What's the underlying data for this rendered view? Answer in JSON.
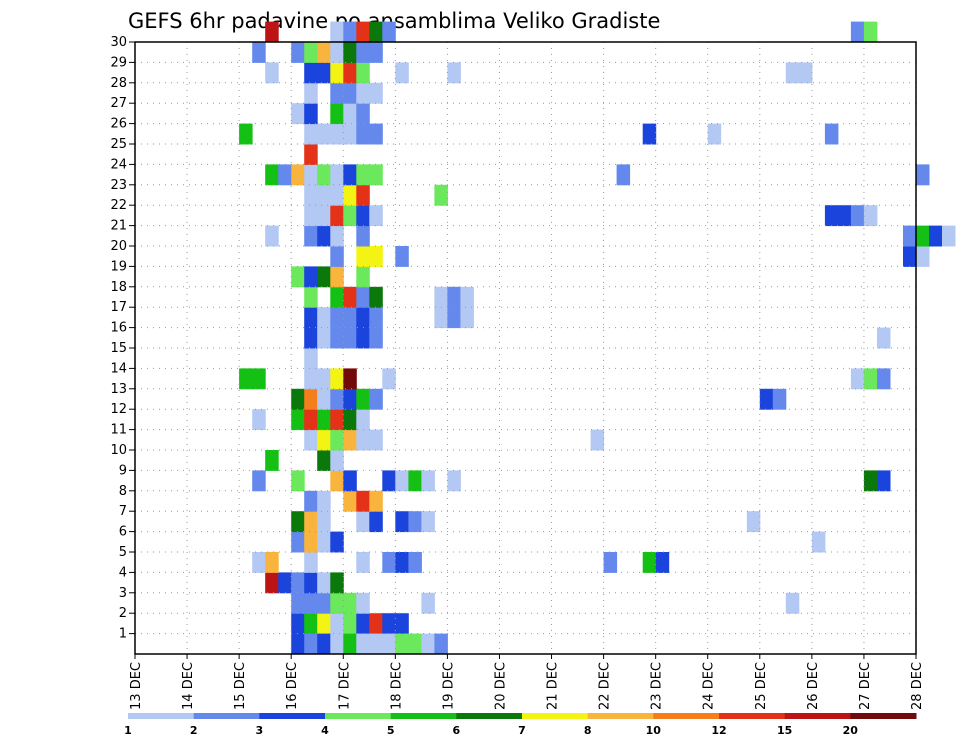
{
  "chart_data": {
    "type": "heatmap",
    "title": "GEFS 6hr padavine po ansamblima Veliko Gradiste",
    "x_ticks": [
      "13 DEC",
      "14 DEC",
      "15 DEC",
      "16 DEC",
      "17 DEC",
      "18 DEC",
      "19 DEC",
      "20 DEC",
      "21 DEC",
      "22 DEC",
      "23 DEC",
      "24 DEC",
      "25 DEC",
      "26 DEC",
      "27 DEC",
      "28 DEC"
    ],
    "y_ticks": [
      "1",
      "2",
      "3",
      "4",
      "5",
      "6",
      "7",
      "8",
      "9",
      "10",
      "11",
      "12",
      "13",
      "14",
      "15",
      "16",
      "17",
      "18",
      "19",
      "20",
      "21",
      "22",
      "23",
      "24",
      "25",
      "26",
      "27",
      "28",
      "29",
      "30"
    ],
    "xlim": [
      "13 DEC",
      "28 DEC"
    ],
    "ylim": [
      0,
      30
    ],
    "grid": true,
    "step_hours": 6,
    "colorbar": {
      "placement": "bottom",
      "labels": [
        "1",
        "2",
        "3",
        "4",
        "5",
        "6",
        "7",
        "8",
        "10",
        "12",
        "15",
        "20"
      ],
      "bins": [
        {
          "from": 1,
          "to": 2,
          "color": "#b4c8f4"
        },
        {
          "from": 2,
          "to": 3,
          "color": "#6488ec"
        },
        {
          "from": 3,
          "to": 4,
          "color": "#1a44dc"
        },
        {
          "from": 4,
          "to": 5,
          "color": "#6ce85c"
        },
        {
          "from": 5,
          "to": 6,
          "color": "#14c014"
        },
        {
          "from": 6,
          "to": 7,
          "color": "#0a780a"
        },
        {
          "from": 7,
          "to": 8,
          "color": "#f4f414"
        },
        {
          "from": 8,
          "to": 10,
          "color": "#f8b43c"
        },
        {
          "from": 10,
          "to": 12,
          "color": "#f47e1c"
        },
        {
          "from": 12,
          "to": 15,
          "color": "#e43218"
        },
        {
          "from": 15,
          "to": 20,
          "color": "#bc1414"
        },
        {
          "from": 20,
          "to": null,
          "color": "#720a0a"
        }
      ]
    },
    "cells": [
      {
        "member": 1,
        "days": [
          "15 DEC 06"
        ],
        "values": [
          1.5
        ]
      },
      {
        "member": 0,
        "days": [],
        "values": []
      },
      {
        "member": 1,
        "start": "16 DEC 00",
        "values": [
          3,
          5,
          7.5,
          1.5,
          4,
          3,
          12,
          3,
          3
        ]
      },
      {
        "member": 0,
        "start": "16 DEC 00",
        "values": [
          3,
          2,
          3,
          1.5,
          5.5,
          1.5,
          1.5,
          1.5,
          4.5,
          4.5,
          1.5,
          2
        ]
      },
      {
        "member": 2,
        "start": "16 DEC 00",
        "values": [
          2,
          2,
          2.5,
          4.5,
          4.5,
          1.5
        ]
      },
      {
        "member": 2,
        "start": "18 DEC 12",
        "values": [
          1.5
        ]
      },
      {
        "member": 2,
        "start": "25 DEC 12",
        "values": [
          1.5
        ]
      },
      {
        "member": 3,
        "start": "15 DEC 12",
        "values": [
          15,
          3
        ]
      },
      {
        "member": 3,
        "start": "16 DEC 00",
        "values": [
          2,
          3,
          1.5,
          6.5
        ]
      },
      {
        "member": 4,
        "start": "15 DEC 06",
        "values": [
          1.5,
          9
        ]
      },
      {
        "member": 4,
        "start": "16 DEC 06",
        "values": [
          1.5
        ]
      },
      {
        "member": 4,
        "start": "17 DEC 06",
        "values": [
          1.5
        ]
      },
      {
        "member": 4,
        "start": "17 DEC 18",
        "values": [
          2.5,
          3.5,
          2
        ]
      },
      {
        "member": 4,
        "start": "22 DEC 00",
        "values": [
          2.5
        ]
      },
      {
        "member": 4,
        "start": "22 DEC 18",
        "values": [
          5.5,
          3.5
        ]
      },
      {
        "member": 5,
        "start": "16 DEC 00",
        "values": [
          2,
          9,
          1.5,
          3.5
        ]
      },
      {
        "member": 5,
        "start": "26 DEC 00",
        "values": [
          1.5
        ]
      },
      {
        "member": 6,
        "start": "16 DEC 00",
        "values": [
          6.5,
          9,
          1.5
        ]
      },
      {
        "member": 6,
        "start": "17 DEC 06",
        "values": [
          1.5,
          3.5,
          0,
          3,
          2,
          1.5
        ]
      },
      {
        "member": 6,
        "start": "24 DEC 18",
        "values": [
          1.5
        ]
      },
      {
        "member": 7,
        "start": "16 DEC 06",
        "values": [
          2,
          1.5,
          0,
          9,
          14,
          9
        ]
      },
      {
        "member": 8,
        "start": "15 DEC 06",
        "values": [
          2.5
        ]
      },
      {
        "member": 8,
        "start": "16 DEC 00",
        "values": [
          4.5
        ]
      },
      {
        "member": 8,
        "start": "16 DEC 18",
        "values": [
          9,
          3.5
        ]
      },
      {
        "member": 8,
        "start": "17 DEC 18",
        "values": [
          3.5,
          1.5,
          5.5,
          1.5,
          0,
          1.5
        ]
      },
      {
        "member": 8,
        "start": "27 DEC 00",
        "values": [
          6.5,
          3.5
        ]
      },
      {
        "member": 9,
        "start": "15 DEC 12",
        "values": [
          5.5
        ]
      },
      {
        "member": 9,
        "start": "16 DEC 12",
        "values": [
          6.5,
          1.5
        ]
      },
      {
        "member": 10,
        "start": "16 DEC 06",
        "values": [
          1.5,
          7.5,
          4.5,
          9,
          1.5,
          1.5
        ]
      },
      {
        "member": 10,
        "start": "21 DEC 18",
        "values": [
          1.5
        ]
      },
      {
        "member": 11,
        "start": "15 DEC 06",
        "values": [
          1.5
        ]
      },
      {
        "member": 11,
        "start": "16 DEC 00",
        "values": [
          5.5,
          14,
          5.5,
          13,
          6.5,
          1.5
        ]
      },
      {
        "member": 12,
        "start": "16 DEC 00",
        "values": [
          6.5,
          10,
          1.5,
          2,
          3,
          5.5,
          2
        ]
      },
      {
        "member": 12,
        "start": "25 DEC 00",
        "values": [
          3.5,
          2.5
        ]
      },
      {
        "member": 13,
        "start": "15 DEC 00",
        "values": [
          5,
          5
        ]
      },
      {
        "member": 13,
        "start": "16 DEC 06",
        "values": [
          1.5,
          1.5,
          7.5,
          25
        ]
      },
      {
        "member": 13,
        "start": "17 DEC 18",
        "values": [
          1.5
        ]
      },
      {
        "member": 13,
        "start": "26 DEC 18",
        "values": [
          1.5,
          4.5,
          2.5
        ]
      },
      {
        "member": 14,
        "start": "16 DEC 06",
        "values": [
          1.5
        ]
      },
      {
        "member": 15,
        "start": "16 DEC 06",
        "values": [
          3.5,
          1.5,
          2.5,
          2.5,
          3.5,
          2
        ]
      },
      {
        "member": 15,
        "start": "27 DEC 06",
        "values": [
          1.5
        ]
      },
      {
        "member": 16,
        "start": "16 DEC 06",
        "values": [
          3.5,
          1.5,
          2,
          2,
          3.5,
          2
        ]
      },
      {
        "member": 16,
        "start": "18 DEC 18",
        "values": [
          1.5,
          2.5,
          1.5
        ]
      },
      {
        "member": 17,
        "start": "16 DEC 06",
        "values": [
          4.5,
          0,
          5,
          14,
          2.5,
          6.5
        ]
      },
      {
        "member": 17,
        "start": "18 DEC 18",
        "values": [
          1.5,
          2.5,
          1.5
        ]
      },
      {
        "member": 18,
        "start": "16 DEC 00",
        "values": [
          4.5,
          3.5,
          6.5,
          9,
          0,
          4.5
        ]
      },
      {
        "member": 19,
        "start": "16 DEC 18",
        "values": [
          2
        ]
      },
      {
        "member": 19,
        "start": "17 DEC 06",
        "values": [
          7.5,
          7.5,
          0,
          2
        ]
      },
      {
        "member": 19,
        "start": "27 DEC 18",
        "values": [
          3.5,
          1.5
        ]
      },
      {
        "member": 20,
        "start": "15 DEC 12",
        "values": [
          1.5
        ]
      },
      {
        "member": 20,
        "start": "16 DEC 06",
        "values": [
          2,
          3.5,
          1.5
        ]
      },
      {
        "member": 20,
        "start": "17 DEC 06",
        "values": [
          2
        ]
      },
      {
        "member": 20,
        "start": "27 DEC 18",
        "values": [
          2,
          5.5,
          3.5,
          1.5
        ]
      },
      {
        "member": 21,
        "start": "16 DEC 06",
        "values": [
          1.5,
          1.5,
          14,
          4.5,
          3.5,
          1.5
        ]
      },
      {
        "member": 21,
        "start": "26 DEC 06",
        "values": [
          3.5,
          3.5,
          2,
          1.5
        ]
      },
      {
        "member": 22,
        "start": "16 DEC 06",
        "values": [
          1.5,
          1.5,
          1.5,
          7.5,
          14
        ]
      },
      {
        "member": 22,
        "start": "18 DEC 18",
        "values": [
          4.5
        ]
      },
      {
        "member": 23,
        "start": "15 DEC 12",
        "values": [
          5.5,
          2.5
        ]
      },
      {
        "member": 23,
        "start": "16 DEC 00",
        "values": [
          9,
          1.5,
          4.5,
          1.5,
          3.5,
          4.5,
          4.5
        ]
      },
      {
        "member": 23,
        "start": "22 DEC 06",
        "values": [
          2.5
        ]
      },
      {
        "member": 23,
        "start": "28 DEC 00",
        "values": [
          2.5
        ]
      },
      {
        "member": 24,
        "start": "16 DEC 06",
        "values": [
          13
        ]
      },
      {
        "member": 25,
        "start": "15 DEC 00",
        "values": [
          5.5
        ]
      },
      {
        "member": 25,
        "start": "16 DEC 06",
        "values": [
          1.5,
          1.5,
          1.5,
          1.5,
          2,
          2
        ]
      },
      {
        "member": 25,
        "start": "22 DEC 18",
        "values": [
          3.5
        ]
      },
      {
        "member": 25,
        "start": "24 DEC 00",
        "values": [
          1.5
        ]
      },
      {
        "member": 25,
        "start": "26 DEC 06",
        "values": [
          2.5
        ]
      },
      {
        "member": 26,
        "start": "16 DEC 00",
        "values": [
          1.5,
          3.5,
          0,
          5.5,
          1.5,
          2
        ]
      },
      {
        "member": 27,
        "start": "16 DEC 06",
        "values": [
          1.5,
          0,
          2,
          2,
          1.5,
          1.5
        ]
      },
      {
        "member": 28,
        "start": "15 DEC 12",
        "values": [
          1.5
        ]
      },
      {
        "member": 28,
        "start": "16 DEC 06",
        "values": [
          3.5,
          3.5,
          7.5,
          13,
          4.5
        ]
      },
      {
        "member": 28,
        "start": "18 DEC 00",
        "values": [
          1.5
        ]
      },
      {
        "member": 28,
        "start": "19 DEC 00",
        "values": [
          1.5
        ]
      },
      {
        "member": 28,
        "start": "25 DEC 12",
        "values": [
          1.5,
          1.5
        ]
      },
      {
        "member": 29,
        "start": "15 DEC 06",
        "values": [
          2.5
        ]
      },
      {
        "member": 29,
        "start": "16 DEC 00",
        "values": [
          2,
          4.5,
          9,
          1.5,
          6.5,
          2.5,
          2
        ]
      },
      {
        "member": 30,
        "start": "15 DEC 12",
        "values": [
          15
        ]
      },
      {
        "member": 30,
        "start": "16 DEC 18",
        "values": [
          1.5,
          2.5,
          12,
          6.5,
          2.5
        ]
      },
      {
        "member": 30,
        "start": "26 DEC 18",
        "values": [
          2.5,
          4.5
        ]
      }
    ]
  }
}
